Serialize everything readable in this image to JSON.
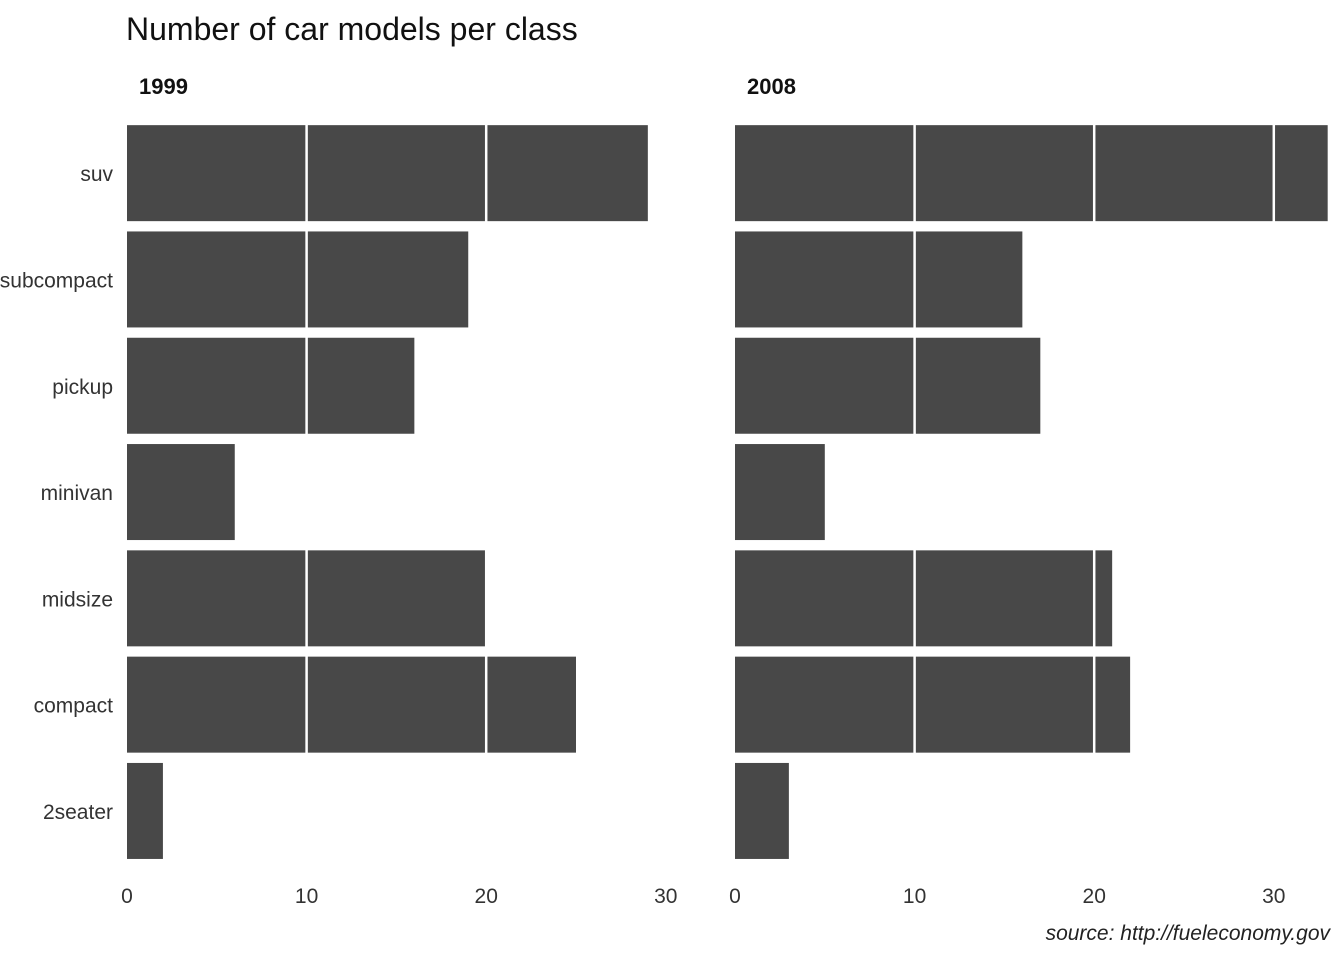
{
  "chart_data": {
    "type": "bar",
    "orientation": "horizontal",
    "title": "Number of car models per class",
    "caption": "source: http://fueleconomy.gov",
    "facet_by": "year",
    "categories": [
      "suv",
      "subcompact",
      "pickup",
      "minivan",
      "midsize",
      "compact",
      "2seater"
    ],
    "panels": [
      {
        "label": "1999",
        "values": [
          29,
          19,
          16,
          6,
          20,
          25,
          2
        ]
      },
      {
        "label": "2008",
        "values": [
          33,
          16,
          17,
          5,
          21,
          22,
          3
        ]
      }
    ],
    "x_ticks": [
      "0",
      "10",
      "20",
      "30"
    ],
    "xlim": [
      0,
      33
    ],
    "grid": true,
    "gridline_style": "white lines over bars",
    "bar_color": "#484848"
  }
}
